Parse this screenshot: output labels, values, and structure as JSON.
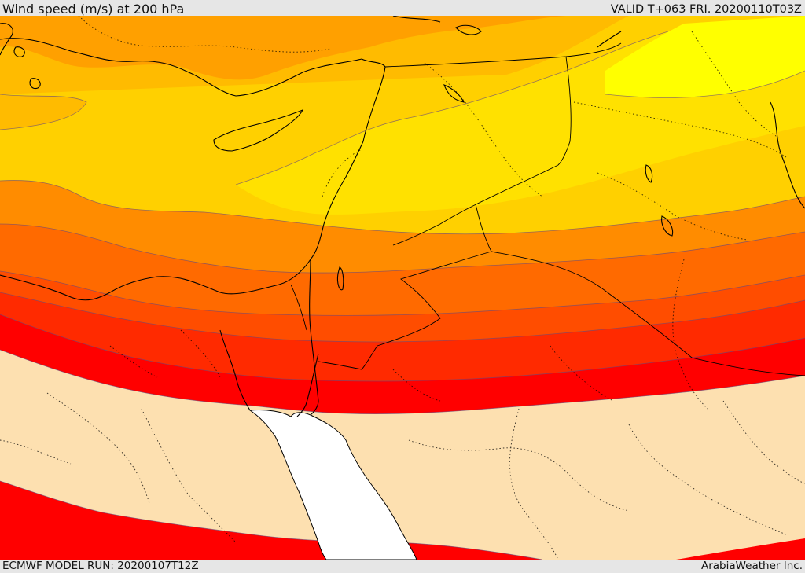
{
  "header": {
    "title": "Wind speed (m/s) at 200 hPa",
    "valid": "VALID T+063 FRI. 20200110T03Z"
  },
  "footer": {
    "model_run": "ECMWF MODEL RUN: 20200107T12Z",
    "credit": "ArabiaWeather Inc."
  },
  "map": {
    "variable": "wind speed",
    "level": "200 hPa",
    "units": "m/s",
    "colors": {
      "weak": "#fde0b0",
      "red": "#ff0000",
      "red_orange": "#ff2a00",
      "orange_red": "#ff4d00",
      "dark_orange": "#ff6a00",
      "orange": "#ff8c00",
      "light_orange": "#ffa000",
      "amber": "#ffbb00",
      "gold": "#ffd000",
      "yellow_gold": "#ffe100",
      "yellow": "#ffff00",
      "water": "#ffffff"
    }
  }
}
